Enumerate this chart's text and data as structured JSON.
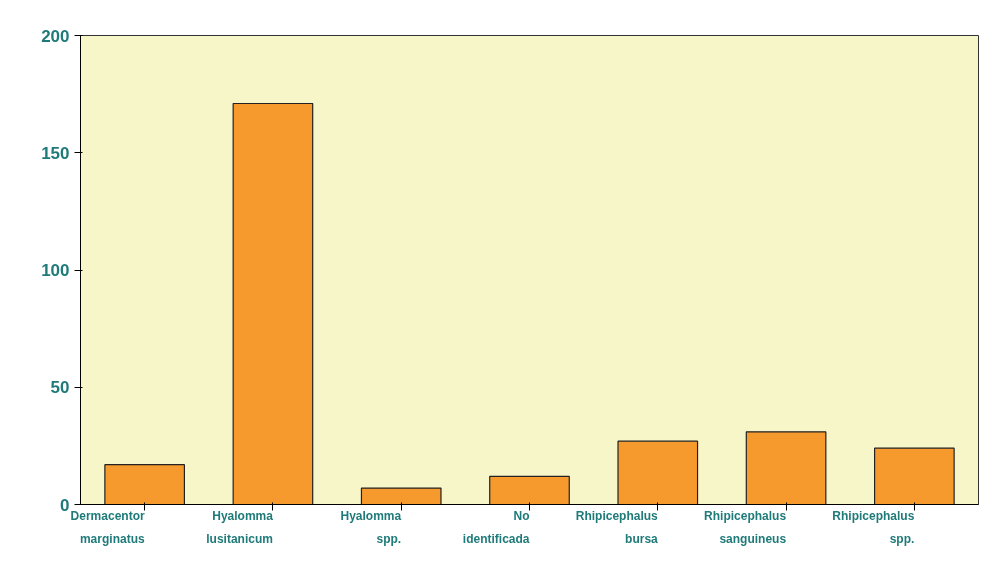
{
  "chart_data": {
    "type": "bar",
    "categories": [
      "Dermacentor marginatus",
      "Hyalomma lusitanicum",
      "Hyalomma spp.",
      "No identificada",
      "Rhipicephalus bursa",
      "Rhipicephalus sanguineus",
      "Rhipicephalus spp."
    ],
    "values": [
      17,
      171,
      7,
      12,
      27,
      31,
      24
    ],
    "color": "#f79a2e",
    "ylim": [
      0,
      200
    ],
    "yticks": [
      0,
      50,
      100,
      150,
      200
    ],
    "grid": false
  }
}
